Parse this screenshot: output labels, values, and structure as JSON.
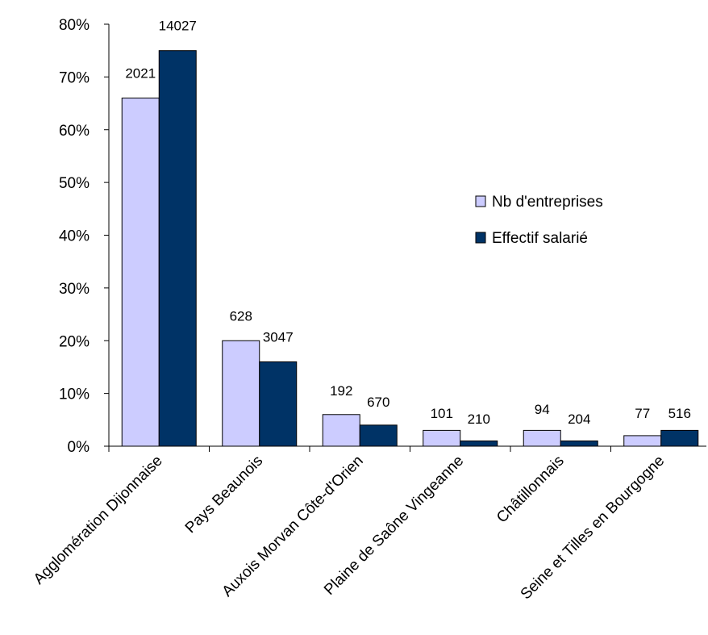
{
  "chart_data": {
    "type": "bar",
    "categories": [
      "Agglomération Dijonnaise",
      "Pays Beaunois",
      "Auxois Morvan Côte-d'Orien",
      "Plaine de Saône Vingeanne",
      "Châtillonnais",
      "Seine et Tilles en Bourgogne"
    ],
    "series": [
      {
        "name": "Nb d'entreprises",
        "color": "#ccccff",
        "values": [
          66,
          20,
          6,
          3,
          3,
          2
        ],
        "labels": [
          "2021",
          "628",
          "192",
          "101",
          "94",
          "77"
        ]
      },
      {
        "name": "Effectif salarié",
        "color": "#003366",
        "values": [
          75,
          16,
          4,
          1,
          1,
          3
        ],
        "labels": [
          "14027",
          "3047",
          "670",
          "210",
          "204",
          "516"
        ]
      }
    ],
    "yticks": [
      "0%",
      "10%",
      "20%",
      "30%",
      "40%",
      "50%",
      "60%",
      "70%",
      "80%"
    ],
    "ylim": [
      0,
      80
    ],
    "grid": false,
    "legend_position": "right"
  }
}
